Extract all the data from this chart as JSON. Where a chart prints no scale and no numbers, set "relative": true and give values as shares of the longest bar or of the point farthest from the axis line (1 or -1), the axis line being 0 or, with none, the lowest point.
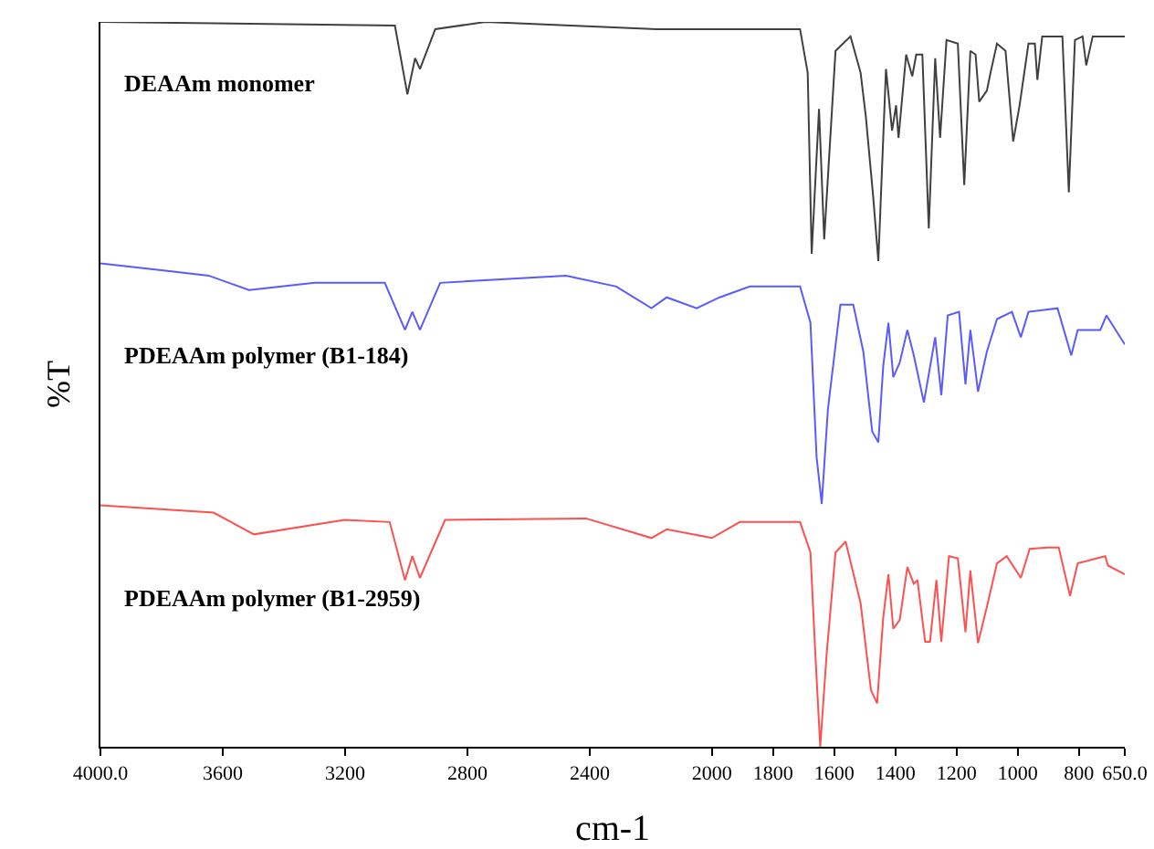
{
  "chart_data": {
    "type": "line",
    "relative": true,
    "xlabel": "cm-1",
    "ylabel": "%T",
    "xlim": [
      4000,
      650
    ],
    "xticks": [
      {
        "value": 4000,
        "label": "4000.0"
      },
      3600,
      3200,
      2800,
      2400,
      2000,
      1800,
      1600,
      1400,
      1200,
      1000,
      800,
      {
        "value": 650,
        "label": "650.0"
      }
    ],
    "grid": false,
    "legend": false,
    "marker": "none",
    "line_style": "solid",
    "series": [
      {
        "name": "DEAAm monomer",
        "color": "#404040",
        "x": [
          4000,
          3037,
          2996,
          2971,
          2955,
          2905,
          2741,
          2181,
          1990,
          1712,
          1687,
          1674,
          1650,
          1633,
          1596,
          1547,
          1514,
          1497,
          1473,
          1456,
          1431,
          1411,
          1398,
          1390,
          1365,
          1345,
          1332,
          1312,
          1291,
          1270,
          1254,
          1233,
          1196,
          1175,
          1155,
          1138,
          1126,
          1101,
          1089,
          1068,
          1040,
          1015,
          994,
          965,
          944,
          936,
          920,
          854,
          833,
          813,
          788,
          776,
          755,
          650
        ],
        "values": [
          1.0,
          0.995,
          0.9,
          0.95,
          0.935,
          0.99,
          1.0,
          0.99,
          0.99,
          0.99,
          0.93,
          0.68,
          0.88,
          0.7,
          0.96,
          0.98,
          0.93,
          0.87,
          0.76,
          0.67,
          0.935,
          0.85,
          0.885,
          0.84,
          0.955,
          0.925,
          0.955,
          0.955,
          0.715,
          0.95,
          0.84,
          0.975,
          0.97,
          0.775,
          0.96,
          0.955,
          0.89,
          0.905,
          0.93,
          0.97,
          0.96,
          0.835,
          0.885,
          0.97,
          0.97,
          0.92,
          0.98,
          0.98,
          0.765,
          0.975,
          0.98,
          0.94,
          0.98,
          0.98
        ]
      },
      {
        "name": "PDEAAm polymer (B1-184)",
        "color": "#5a5aff",
        "x": [
          4000,
          3794,
          3646,
          3514,
          3300,
          3070,
          3004,
          2980,
          2955,
          2889,
          2477,
          2313,
          2198,
          2148,
          2050,
          1975,
          1876,
          1712,
          1678,
          1658,
          1641,
          1621,
          1580,
          1538,
          1505,
          1476,
          1456,
          1440,
          1423,
          1407,
          1386,
          1361,
          1340,
          1307,
          1270,
          1250,
          1229,
          1192,
          1171,
          1155,
          1130,
          1101,
          1068,
          1019,
          990,
          965,
          870,
          825,
          804,
          730,
          710,
          650
        ],
        "values": [
          0.667,
          0.657,
          0.65,
          0.63,
          0.64,
          0.64,
          0.575,
          0.6,
          0.575,
          0.64,
          0.65,
          0.635,
          0.605,
          0.62,
          0.605,
          0.62,
          0.635,
          0.635,
          0.585,
          0.4,
          0.335,
          0.465,
          0.61,
          0.61,
          0.545,
          0.435,
          0.42,
          0.525,
          0.585,
          0.51,
          0.53,
          0.575,
          0.54,
          0.475,
          0.565,
          0.485,
          0.595,
          0.6,
          0.5,
          0.575,
          0.49,
          0.545,
          0.59,
          0.6,
          0.565,
          0.6,
          0.605,
          0.54,
          0.575,
          0.575,
          0.595,
          0.555
        ]
      },
      {
        "name": "PDEAAm polymer (B1-2959)",
        "color": "#ff5050",
        "x": [
          4000,
          3630,
          3498,
          3202,
          3054,
          3004,
          2980,
          2955,
          2873,
          2412,
          2198,
          2148,
          2000,
          1909,
          1712,
          1678,
          1662,
          1646,
          1625,
          1596,
          1563,
          1514,
          1480,
          1460,
          1440,
          1423,
          1407,
          1386,
          1361,
          1340,
          1328,
          1303,
          1287,
          1266,
          1250,
          1225,
          1196,
          1171,
          1155,
          1130,
          1101,
          1068,
          1036,
          990,
          961,
          903,
          866,
          829,
          804,
          714,
          705,
          650
        ],
        "values": [
          0.333,
          0.323,
          0.293,
          0.313,
          0.31,
          0.23,
          0.263,
          0.233,
          0.313,
          0.315,
          0.288,
          0.3,
          0.288,
          0.31,
          0.31,
          0.268,
          0.128,
          0.0,
          0.128,
          0.268,
          0.283,
          0.198,
          0.078,
          0.06,
          0.178,
          0.238,
          0.163,
          0.175,
          0.248,
          0.225,
          0.23,
          0.145,
          0.145,
          0.23,
          0.145,
          0.263,
          0.26,
          0.158,
          0.243,
          0.143,
          0.193,
          0.253,
          0.263,
          0.233,
          0.273,
          0.275,
          0.275,
          0.208,
          0.253,
          0.263,
          0.25,
          0.238
        ]
      }
    ]
  }
}
